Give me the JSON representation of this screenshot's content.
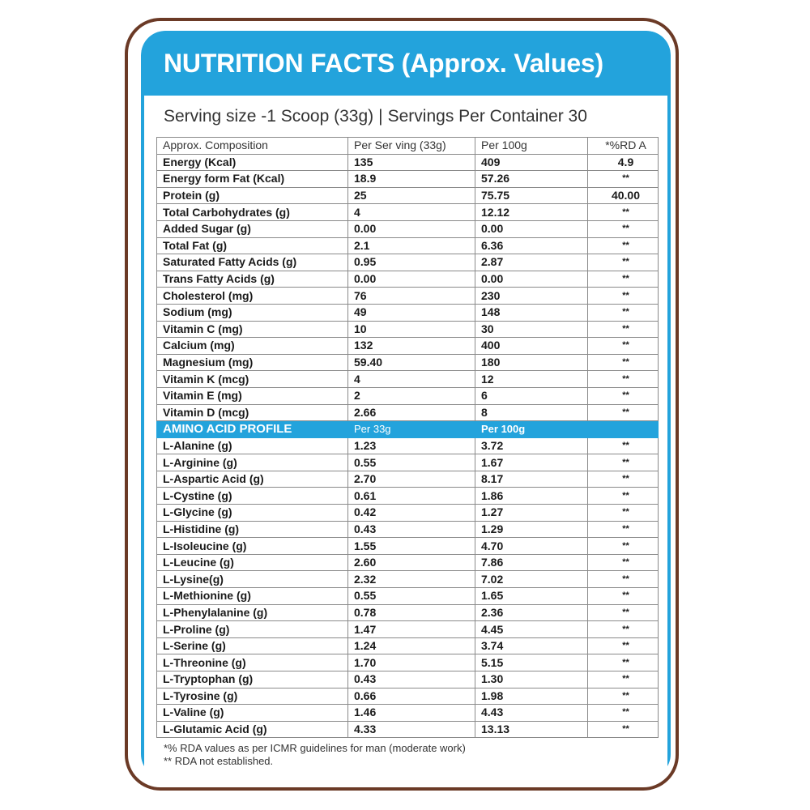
{
  "header": {
    "title": "NUTRITION FACTS (Approx. Values)"
  },
  "serving": {
    "size": "Serving size -1 Scoop (33g)",
    "separator": "|",
    "per_container": "Servings Per Container 30"
  },
  "table": {
    "headers": [
      "Approx. Composition",
      "Per Ser  ving (33g)",
      "Per 100g",
      "*%RD A"
    ],
    "rows": [
      [
        "Energy (Kcal)",
        "135",
        "409",
        "4.9"
      ],
      [
        "Energy form Fat (Kcal)",
        "18.9",
        "57.26",
        "**"
      ],
      [
        "Protein (g)",
        "25",
        "75.75",
        "40.00"
      ],
      [
        "Total Carbohydrates (g)",
        "4",
        "12.12",
        "**"
      ],
      [
        "Added Sugar (g)",
        "0.00",
        "0.00",
        "**"
      ],
      [
        "Total Fat (g)",
        "2.1",
        "6.36",
        "**"
      ],
      [
        "Saturated Fatty Acids (g)",
        "0.95",
        "2.87",
        "**"
      ],
      [
        "Trans Fatty Acids (g)",
        "0.00",
        "0.00",
        "**"
      ],
      [
        "Cholesterol (mg)",
        "76",
        "230",
        "**"
      ],
      [
        "Sodium (mg)",
        "49",
        "148",
        "**"
      ],
      [
        "Vitamin C (mg)",
        "10",
        "30",
        "**"
      ],
      [
        "Calcium (mg)",
        "132",
        "400",
        "**"
      ],
      [
        "Magnesium (mg)",
        "59.40",
        "180",
        "**"
      ],
      [
        "Vitamin K (mcg)",
        "4",
        "12",
        "**"
      ],
      [
        "Vitamin E (mg)",
        "2",
        "6",
        "**"
      ],
      [
        "Vitamin D (mcg)",
        "2.66",
        "8",
        "**"
      ]
    ]
  },
  "amino": {
    "title": "AMINO ACID PROFILE",
    "col1": "Per 33g",
    "col2": "Per 100g",
    "rows": [
      [
        "L-Alanine (g)",
        "1.23",
        "3.72",
        "**"
      ],
      [
        "L-Arginine (g)",
        "0.55",
        "1.67",
        "**"
      ],
      [
        "L-Aspartic Acid (g)",
        "2.70",
        "8.17",
        "**"
      ],
      [
        "L-Cystine (g)",
        "0.61",
        "1.86",
        "**"
      ],
      [
        "L-Glycine (g)",
        "0.42",
        "1.27",
        "**"
      ],
      [
        "L-Histidine (g)",
        "0.43",
        "1.29",
        "**"
      ],
      [
        "L-Isoleucine (g)",
        "1.55",
        "4.70",
        "**"
      ],
      [
        "L-Leucine (g)",
        "2.60",
        "7.86",
        "**"
      ],
      [
        "L-Lysine(g)",
        "2.32",
        "7.02",
        "**"
      ],
      [
        "L-Methionine (g)",
        "0.55",
        "1.65",
        "**"
      ],
      [
        "L-Phenylalanine (g)",
        "0.78",
        "2.36",
        "**"
      ],
      [
        "L-Proline (g)",
        "1.47",
        "4.45",
        "**"
      ],
      [
        "L-Serine (g)",
        "1.24",
        "3.74",
        "**"
      ],
      [
        "L-Threonine (g)",
        "1.70",
        "5.15",
        "**"
      ],
      [
        "L-Tryptophan (g)",
        "0.43",
        "1.30",
        "**"
      ],
      [
        "L-Tyrosine (g)",
        "0.66",
        "1.98",
        "**"
      ],
      [
        "L-Valine (g)",
        "1.46",
        "4.43",
        "**"
      ],
      [
        "L-Glutamic Acid (g)",
        "4.33",
        "13.13",
        "**"
      ]
    ]
  },
  "footnotes": [
    "*% RDA values as per ICMR guidelines for man (moderate work)",
    "** RDA not established."
  ],
  "colors": {
    "accent_blue": "#23a3dc",
    "border_brown": "#6b3a26",
    "text": "#1a1a1a"
  }
}
